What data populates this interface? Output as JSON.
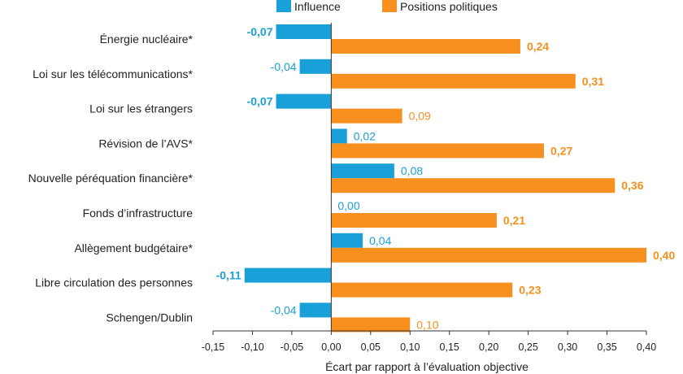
{
  "chart_data": {
    "type": "bar",
    "orientation": "horizontal",
    "title": "",
    "xlabel": "Écart par rapport à l’évaluation objective",
    "ylabel": "",
    "xlim": [
      -0.15,
      0.4
    ],
    "xticks": [
      "-0,15",
      "-0,10",
      "-0,05",
      "0,00",
      "0,05",
      "0,10",
      "0,15",
      "0,20",
      "0,25",
      "0,30",
      "0,35",
      "0,40"
    ],
    "legend_position": "top",
    "grid": false,
    "categories": [
      "Énergie nucléaire*",
      "Loi sur les télécommunications*",
      "Loi sur les étrangers",
      "Révision de l’AVS*",
      "Nouvelle péréquation financière*",
      "Fonds d’infrastructure",
      "Allègement budgétaire*",
      "Libre circulation des personnes",
      "Schengen/Dublin"
    ],
    "series": [
      {
        "name": "Influence",
        "color": "#1aa0d8",
        "values": [
          -0.07,
          -0.04,
          -0.07,
          0.02,
          0.08,
          0.0,
          0.04,
          -0.11,
          -0.04
        ],
        "labels": [
          "-0,07",
          "-0,04",
          "-0,07",
          "0,02",
          "0,08",
          "0,00",
          "0,04",
          "-0,11",
          "-0,04"
        ],
        "bold": [
          true,
          false,
          true,
          false,
          false,
          false,
          false,
          true,
          false
        ]
      },
      {
        "name": "Positions politiques",
        "color": "#f7901e",
        "values": [
          0.24,
          0.31,
          0.09,
          0.27,
          0.36,
          0.21,
          0.4,
          0.23,
          0.1
        ],
        "labels": [
          "0,24",
          "0,31",
          "0,09",
          "0,27",
          "0,36",
          "0,21",
          "0,40",
          "0,23",
          "0,10"
        ],
        "bold": [
          true,
          true,
          false,
          true,
          true,
          true,
          true,
          true,
          false
        ]
      }
    ]
  }
}
